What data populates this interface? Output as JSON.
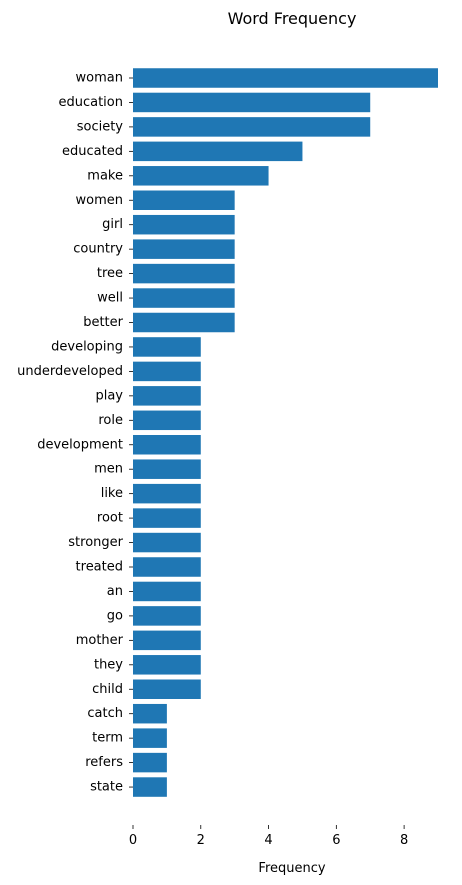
{
  "chart_data": {
    "type": "bar",
    "orientation": "horizontal",
    "title": "Word Frequency",
    "xlabel": "Frequency",
    "ylabel": "",
    "xlim": [
      0,
      9
    ],
    "xticks": [
      0,
      2,
      4,
      6,
      8
    ],
    "grid": false,
    "bar_color": "#1f77b4",
    "categories": [
      "woman",
      "education",
      "society",
      "educated",
      "make",
      "women",
      "girl",
      "country",
      "tree",
      "well",
      "better",
      "developing",
      "underdeveloped",
      "play",
      "role",
      "development",
      "men",
      "like",
      "root",
      "stronger",
      "treated",
      "an",
      "go",
      "mother",
      "they",
      "child",
      "catch",
      "term",
      "refers",
      "state"
    ],
    "values": [
      9,
      7,
      7,
      5,
      4,
      3,
      3,
      3,
      3,
      3,
      3,
      2,
      2,
      2,
      2,
      2,
      2,
      2,
      2,
      2,
      2,
      2,
      2,
      2,
      2,
      2,
      1,
      1,
      1,
      1
    ]
  }
}
